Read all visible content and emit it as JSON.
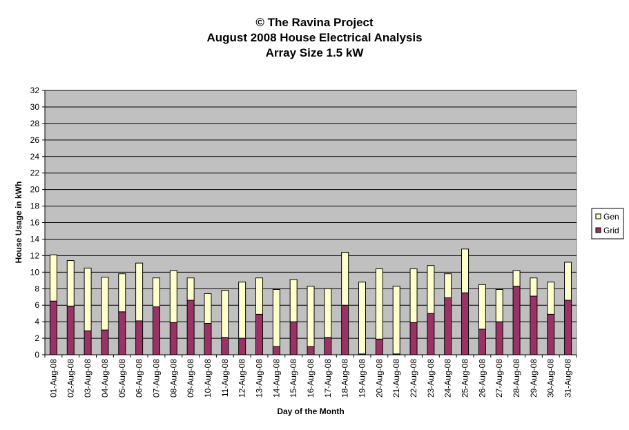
{
  "chart_data": {
    "type": "bar",
    "stacked": true,
    "title_lines": [
      "© The Ravina Project",
      "August 2008 House Electrical Analysis",
      "Array Size 1.5 kW"
    ],
    "xlabel": "Day of the Month",
    "ylabel": "House Usage in kWh",
    "ylim": [
      0,
      32
    ],
    "yticks": [
      0,
      2,
      4,
      6,
      8,
      10,
      12,
      14,
      16,
      18,
      20,
      22,
      24,
      26,
      28,
      30,
      32
    ],
    "grid": true,
    "legend_position": "right",
    "categories": [
      "01-Aug-08",
      "02-Aug-08",
      "03-Aug-08",
      "04-Aug-08",
      "05-Aug-08",
      "06-Aug-08",
      "07-Aug-08",
      "08-Aug-08",
      "09-Aug-08",
      "10-Aug-08",
      "11-Aug-08",
      "12-Aug-08",
      "13-Aug-08",
      "14-Aug-08",
      "15-Aug-08",
      "16-Aug-08",
      "17-Aug-08",
      "18-Aug-08",
      "19-Aug-08",
      "20-Aug-08",
      "21-Aug-08",
      "22-Aug-08",
      "23-Aug-08",
      "24-Aug-08",
      "25-Aug-08",
      "26-Aug-08",
      "27-Aug-08",
      "28-Aug-08",
      "29-Aug-08",
      "30-Aug-08",
      "31-Aug-08"
    ],
    "series": [
      {
        "name": "Grid",
        "color": "#993366",
        "values": [
          6.5,
          5.9,
          2.9,
          3.0,
          5.2,
          4.1,
          5.8,
          3.9,
          6.6,
          3.8,
          2.1,
          2.0,
          4.9,
          1.0,
          4.0,
          1.0,
          2.1,
          6.0,
          0.1,
          1.9,
          0.1,
          3.9,
          5.0,
          6.9,
          7.5,
          3.1,
          4.0,
          8.3,
          7.1,
          4.9,
          6.6
        ]
      },
      {
        "name": "Gen",
        "color": "#FFFFCC",
        "values": [
          5.6,
          5.5,
          7.6,
          6.4,
          4.6,
          7.0,
          3.5,
          6.3,
          2.7,
          3.6,
          5.7,
          6.8,
          4.4,
          6.9,
          5.1,
          7.3,
          5.9,
          6.4,
          8.7,
          8.5,
          8.2,
          6.5,
          5.8,
          2.9,
          5.3,
          5.4,
          3.9,
          1.9,
          2.2,
          3.9,
          4.6
        ]
      }
    ],
    "colors": {
      "plot_background": "#C0C0C0",
      "gridline": "#000000",
      "grid_bar": "#993366",
      "gen_bar": "#FFFFCC"
    }
  }
}
